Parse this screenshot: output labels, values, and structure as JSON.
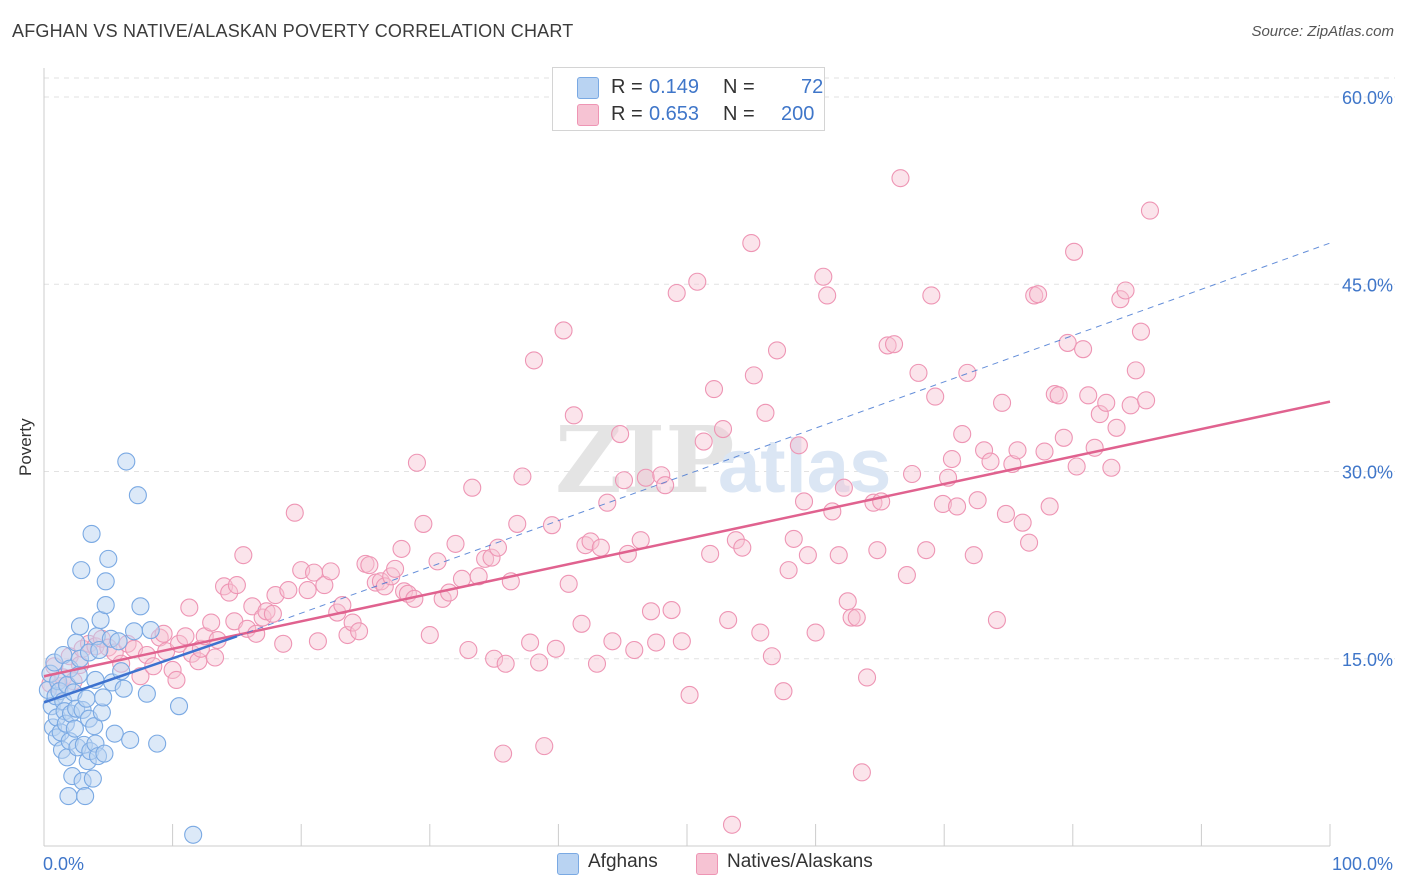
{
  "title": "AFGHAN VS NATIVE/ALASKAN POVERTY CORRELATION CHART",
  "source": "Source: ZipAtlas.com",
  "colors": {
    "blue_fill": "#b9d3f2",
    "blue_stroke": "#7aa9e3",
    "blue_line": "#3d72cf",
    "pink_fill": "#f6c3d3",
    "pink_stroke": "#ee95b4",
    "pink_line": "#e0628f",
    "tick_label": "#3f76c9"
  },
  "legend": {
    "rows": [
      {
        "r_label": "R =",
        "r_value": "0.149",
        "n_label": "N =",
        "n_value": "72"
      },
      {
        "r_label": "R =",
        "r_value": "0.653",
        "n_label": "N =",
        "n_value": "200"
      }
    ]
  },
  "chart_data": {
    "type": "scatter",
    "title": "AFGHAN VS NATIVE/ALASKAN POVERTY CORRELATION CHART",
    "xlabel": "",
    "ylabel": "Poverty",
    "xlim": [
      0,
      100
    ],
    "ylim": [
      0,
      63
    ],
    "x_tick_labels": [
      "0.0%",
      "100.0%"
    ],
    "y_ticks": [
      15,
      30,
      45,
      60
    ],
    "y_tick_labels": [
      "15.0%",
      "30.0%",
      "45.0%",
      "60.0%"
    ],
    "grid": true,
    "legend_position": "top-center",
    "watermark": "ZIPatlas",
    "series": [
      {
        "name": "Afghans",
        "color": "#7aa9e3",
        "R": 0.149,
        "N": 72,
        "trend": {
          "x": [
            0,
            15
          ],
          "y": [
            11.5,
            16.8
          ],
          "style": "solid"
        },
        "trend_extended": {
          "x": [
            15,
            100
          ],
          "y": [
            16.8,
            48.3
          ],
          "style": "dashed"
        },
        "points": [
          [
            0.3,
            12.5
          ],
          [
            0.5,
            13.8
          ],
          [
            0.6,
            11.2
          ],
          [
            0.7,
            9.5
          ],
          [
            0.8,
            14.7
          ],
          [
            0.9,
            12.0
          ],
          [
            1.0,
            10.3
          ],
          [
            1.0,
            8.7
          ],
          [
            1.1,
            13.2
          ],
          [
            1.2,
            12.4
          ],
          [
            1.3,
            9.1
          ],
          [
            1.4,
            7.7
          ],
          [
            1.5,
            15.3
          ],
          [
            1.5,
            11.6
          ],
          [
            1.6,
            10.8
          ],
          [
            1.7,
            9.8
          ],
          [
            1.8,
            7.1
          ],
          [
            1.8,
            12.9
          ],
          [
            1.9,
            4.0
          ],
          [
            2.0,
            14.2
          ],
          [
            2.0,
            8.4
          ],
          [
            2.1,
            10.6
          ],
          [
            2.2,
            5.6
          ],
          [
            2.3,
            12.3
          ],
          [
            2.4,
            9.4
          ],
          [
            2.5,
            16.3
          ],
          [
            2.5,
            11.0
          ],
          [
            2.6,
            7.9
          ],
          [
            2.7,
            13.7
          ],
          [
            2.8,
            15.0
          ],
          [
            2.8,
            17.6
          ],
          [
            2.9,
            22.1
          ],
          [
            3.0,
            10.9
          ],
          [
            3.0,
            5.2
          ],
          [
            3.1,
            8.1
          ],
          [
            3.2,
            4.0
          ],
          [
            3.3,
            11.8
          ],
          [
            3.4,
            6.8
          ],
          [
            3.5,
            15.5
          ],
          [
            3.5,
            10.2
          ],
          [
            3.6,
            7.6
          ],
          [
            3.7,
            25.0
          ],
          [
            3.8,
            5.4
          ],
          [
            3.9,
            9.6
          ],
          [
            4.0,
            13.3
          ],
          [
            4.0,
            8.2
          ],
          [
            4.1,
            16.8
          ],
          [
            4.2,
            7.2
          ],
          [
            4.3,
            15.7
          ],
          [
            4.4,
            18.1
          ],
          [
            4.5,
            10.7
          ],
          [
            4.6,
            11.9
          ],
          [
            4.7,
            7.4
          ],
          [
            4.8,
            21.2
          ],
          [
            4.8,
            19.3
          ],
          [
            5.0,
            23.0
          ],
          [
            5.2,
            16.6
          ],
          [
            5.3,
            13.1
          ],
          [
            5.5,
            9.0
          ],
          [
            5.8,
            16.4
          ],
          [
            6.0,
            14.0
          ],
          [
            6.2,
            12.6
          ],
          [
            6.4,
            30.8
          ],
          [
            6.7,
            8.5
          ],
          [
            7.0,
            17.2
          ],
          [
            7.3,
            28.1
          ],
          [
            7.5,
            19.2
          ],
          [
            8.0,
            12.2
          ],
          [
            8.3,
            17.3
          ],
          [
            8.8,
            8.2
          ],
          [
            10.5,
            11.2
          ],
          [
            11.6,
            0.9
          ]
        ]
      },
      {
        "name": "Natives/Alaskans",
        "color": "#ee95b4",
        "R": 0.653,
        "N": 200,
        "trend": {
          "x": [
            0,
            100
          ],
          "y": [
            13.6,
            35.6
          ],
          "style": "solid"
        },
        "points": [
          [
            0.5,
            13.0
          ],
          [
            0.8,
            14.4
          ],
          [
            1.2,
            12.8
          ],
          [
            1.5,
            13.5
          ],
          [
            2.0,
            15.2
          ],
          [
            2.3,
            13.2
          ],
          [
            2.8,
            14.5
          ],
          [
            3.0,
            15.8
          ],
          [
            3.5,
            16.2
          ],
          [
            4.0,
            16.0
          ],
          [
            4.5,
            16.6
          ],
          [
            5.0,
            15.9
          ],
          [
            5.5,
            15.5
          ],
          [
            6.0,
            14.6
          ],
          [
            6.5,
            16.2
          ],
          [
            7.0,
            15.8
          ],
          [
            7.5,
            13.6
          ],
          [
            8.0,
            15.3
          ],
          [
            8.5,
            14.4
          ],
          [
            9.0,
            16.7
          ],
          [
            9.3,
            17.0
          ],
          [
            9.5,
            15.6
          ],
          [
            10.0,
            14.1
          ],
          [
            10.3,
            13.3
          ],
          [
            10.5,
            16.2
          ],
          [
            11.0,
            16.8
          ],
          [
            11.3,
            19.1
          ],
          [
            11.5,
            15.4
          ],
          [
            12.0,
            14.8
          ],
          [
            12.2,
            15.8
          ],
          [
            12.5,
            16.8
          ],
          [
            13.0,
            17.9
          ],
          [
            13.3,
            15.1
          ],
          [
            13.5,
            16.5
          ],
          [
            14.0,
            20.8
          ],
          [
            14.4,
            20.3
          ],
          [
            14.8,
            18.0
          ],
          [
            15.0,
            20.9
          ],
          [
            15.5,
            23.3
          ],
          [
            15.8,
            17.4
          ],
          [
            16.2,
            19.2
          ],
          [
            16.5,
            17.0
          ],
          [
            17.0,
            18.3
          ],
          [
            17.3,
            18.8
          ],
          [
            17.8,
            18.6
          ],
          [
            18.0,
            20.1
          ],
          [
            18.6,
            16.2
          ],
          [
            19.0,
            20.5
          ],
          [
            19.5,
            26.7
          ],
          [
            20.0,
            22.1
          ],
          [
            20.5,
            20.5
          ],
          [
            21.0,
            21.9
          ],
          [
            21.3,
            16.4
          ],
          [
            21.8,
            20.9
          ],
          [
            22.3,
            22.0
          ],
          [
            22.8,
            18.7
          ],
          [
            23.2,
            19.3
          ],
          [
            23.6,
            16.9
          ],
          [
            24.0,
            17.9
          ],
          [
            24.5,
            17.2
          ],
          [
            25.0,
            22.6
          ],
          [
            25.3,
            22.5
          ],
          [
            25.8,
            21.1
          ],
          [
            26.2,
            21.2
          ],
          [
            26.5,
            20.8
          ],
          [
            27.0,
            21.6
          ],
          [
            27.3,
            22.2
          ],
          [
            27.8,
            23.8
          ],
          [
            28.0,
            20.4
          ],
          [
            28.3,
            20.2
          ],
          [
            28.8,
            19.8
          ],
          [
            29.0,
            30.7
          ],
          [
            29.5,
            25.8
          ],
          [
            30.0,
            16.9
          ],
          [
            30.6,
            22.8
          ],
          [
            31.0,
            19.8
          ],
          [
            31.5,
            20.3
          ],
          [
            32.0,
            24.2
          ],
          [
            32.5,
            21.4
          ],
          [
            33.0,
            15.7
          ],
          [
            33.3,
            28.7
          ],
          [
            33.8,
            21.6
          ],
          [
            34.3,
            23.0
          ],
          [
            34.8,
            23.1
          ],
          [
            35.0,
            15.0
          ],
          [
            35.3,
            23.9
          ],
          [
            35.7,
            7.4
          ],
          [
            35.9,
            14.6
          ],
          [
            36.3,
            21.2
          ],
          [
            36.8,
            25.8
          ],
          [
            37.2,
            29.6
          ],
          [
            37.8,
            16.3
          ],
          [
            38.1,
            38.9
          ],
          [
            38.5,
            14.7
          ],
          [
            38.9,
            8.0
          ],
          [
            39.5,
            25.7
          ],
          [
            39.8,
            15.8
          ],
          [
            40.4,
            41.3
          ],
          [
            40.8,
            21.0
          ],
          [
            41.2,
            34.5
          ],
          [
            41.8,
            17.8
          ],
          [
            42.1,
            24.1
          ],
          [
            42.5,
            24.4
          ],
          [
            43.0,
            14.6
          ],
          [
            43.3,
            23.9
          ],
          [
            43.8,
            27.5
          ],
          [
            44.2,
            16.4
          ],
          [
            44.8,
            33.0
          ],
          [
            45.1,
            29.3
          ],
          [
            45.4,
            23.4
          ],
          [
            45.9,
            15.7
          ],
          [
            46.4,
            24.5
          ],
          [
            46.8,
            29.5
          ],
          [
            47.2,
            18.8
          ],
          [
            47.6,
            16.3
          ],
          [
            48.0,
            29.7
          ],
          [
            48.3,
            28.9
          ],
          [
            48.8,
            18.9
          ],
          [
            49.2,
            44.3
          ],
          [
            49.6,
            16.4
          ],
          [
            50.2,
            12.1
          ],
          [
            50.8,
            45.2
          ],
          [
            51.3,
            32.4
          ],
          [
            51.8,
            23.4
          ],
          [
            52.1,
            36.6
          ],
          [
            52.8,
            33.4
          ],
          [
            53.2,
            18.1
          ],
          [
            53.5,
            1.7
          ],
          [
            53.8,
            24.5
          ],
          [
            54.3,
            23.9
          ],
          [
            55.0,
            48.3
          ],
          [
            55.2,
            37.7
          ],
          [
            55.7,
            17.1
          ],
          [
            56.1,
            34.7
          ],
          [
            56.6,
            15.2
          ],
          [
            57.0,
            39.7
          ],
          [
            57.5,
            12.4
          ],
          [
            57.9,
            22.1
          ],
          [
            58.3,
            24.6
          ],
          [
            58.7,
            32.1
          ],
          [
            59.1,
            27.6
          ],
          [
            59.4,
            23.3
          ],
          [
            60.0,
            17.1
          ],
          [
            60.6,
            45.6
          ],
          [
            60.9,
            44.1
          ],
          [
            61.3,
            26.8
          ],
          [
            61.8,
            23.3
          ],
          [
            62.2,
            28.7
          ],
          [
            62.5,
            19.6
          ],
          [
            62.8,
            18.3
          ],
          [
            63.2,
            18.3
          ],
          [
            63.6,
            5.9
          ],
          [
            64.0,
            13.5
          ],
          [
            64.5,
            27.5
          ],
          [
            64.8,
            23.7
          ],
          [
            65.1,
            27.6
          ],
          [
            65.6,
            40.1
          ],
          [
            66.1,
            40.2
          ],
          [
            66.6,
            53.5
          ],
          [
            67.1,
            21.7
          ],
          [
            67.5,
            29.8
          ],
          [
            68.0,
            37.9
          ],
          [
            68.6,
            23.7
          ],
          [
            69.0,
            44.1
          ],
          [
            69.3,
            36.0
          ],
          [
            69.9,
            27.4
          ],
          [
            70.3,
            29.5
          ],
          [
            70.6,
            31.0
          ],
          [
            71.0,
            27.2
          ],
          [
            71.4,
            33.0
          ],
          [
            71.8,
            37.9
          ],
          [
            72.3,
            23.3
          ],
          [
            72.6,
            27.7
          ],
          [
            73.1,
            31.7
          ],
          [
            73.6,
            30.8
          ],
          [
            74.1,
            18.1
          ],
          [
            74.5,
            35.5
          ],
          [
            74.8,
            26.6
          ],
          [
            75.3,
            30.6
          ],
          [
            75.7,
            31.7
          ],
          [
            76.1,
            25.9
          ],
          [
            76.6,
            24.3
          ],
          [
            77.0,
            44.1
          ],
          [
            77.3,
            44.2
          ],
          [
            77.8,
            31.6
          ],
          [
            78.2,
            27.2
          ],
          [
            78.6,
            36.2
          ],
          [
            78.9,
            36.1
          ],
          [
            79.3,
            32.7
          ],
          [
            79.6,
            40.3
          ],
          [
            80.1,
            47.6
          ],
          [
            80.3,
            30.4
          ],
          [
            80.8,
            39.8
          ],
          [
            81.2,
            36.1
          ],
          [
            81.7,
            31.9
          ],
          [
            82.1,
            34.6
          ],
          [
            82.6,
            35.5
          ],
          [
            83.0,
            30.3
          ],
          [
            83.4,
            33.5
          ],
          [
            83.7,
            43.8
          ],
          [
            84.1,
            44.5
          ],
          [
            84.5,
            35.3
          ],
          [
            84.9,
            38.1
          ],
          [
            85.3,
            41.2
          ],
          [
            85.7,
            35.7
          ],
          [
            86.0,
            50.9
          ]
        ]
      }
    ]
  },
  "bottom_legend": [
    {
      "label": "Afghans"
    },
    {
      "label": "Natives/Alaskans"
    }
  ]
}
